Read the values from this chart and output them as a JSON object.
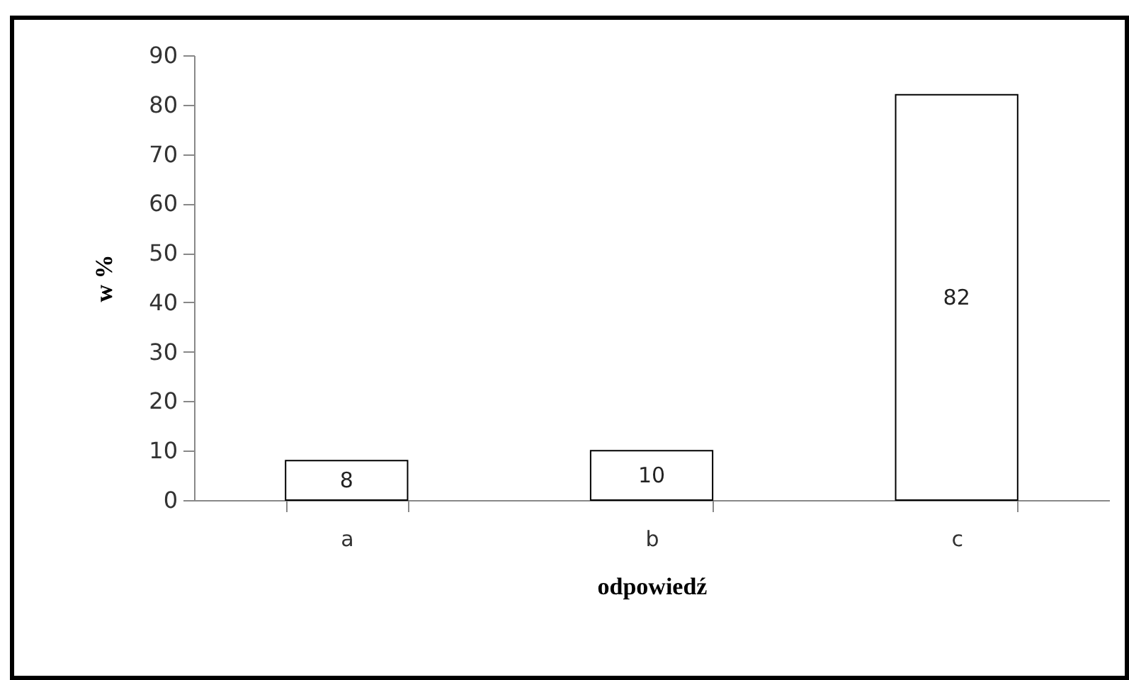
{
  "chart_data": {
    "type": "bar",
    "xlabel": "odpowiedź",
    "ylabel": "w %",
    "categories": [
      "a",
      "b",
      "c"
    ],
    "values": [
      8,
      10,
      82
    ],
    "color": "#ffffff",
    "ylim": [
      0,
      90
    ],
    "yticks": [
      0,
      10,
      20,
      30,
      40,
      50,
      60,
      70,
      80,
      90
    ],
    "grid": false,
    "data_labels": true
  }
}
